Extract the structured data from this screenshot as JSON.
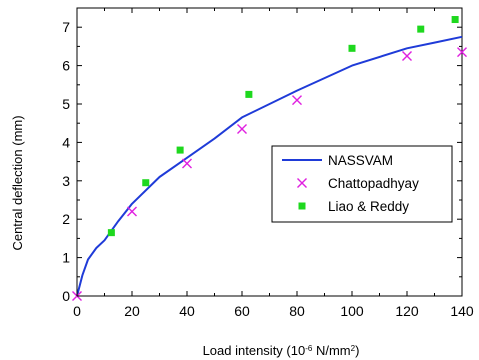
{
  "chart_data": {
    "type": "line",
    "title": "",
    "xlabel": "Load intensity (10",
    "xlabel_sup": "-6",
    "xlabel_mid": " N/mm",
    "xlabel_sup2": "2",
    "xlabel_end": ")",
    "ylabel": "Central deflection (mm)",
    "xlim": [
      0,
      140
    ],
    "ylim": [
      0,
      7.5
    ],
    "xticks": [
      0,
      20,
      40,
      60,
      80,
      100,
      120,
      140
    ],
    "yticks": [
      0,
      1,
      2,
      3,
      4,
      5,
      6,
      7
    ],
    "grid": false,
    "legend_position": "center-right",
    "series": [
      {
        "name": "NASSVAM",
        "kind": "line",
        "color": "#1f3bd8",
        "x": [
          0,
          2,
          4,
          7,
          10,
          15,
          20,
          30,
          40,
          50,
          60,
          80,
          100,
          120,
          130,
          140
        ],
        "y": [
          0,
          0.55,
          0.95,
          1.25,
          1.45,
          1.95,
          2.4,
          3.1,
          3.6,
          4.1,
          4.65,
          5.35,
          6.0,
          6.45,
          6.6,
          6.75
        ]
      },
      {
        "name": "Chattopadhyay",
        "kind": "scatter",
        "marker": "x",
        "color": "#e020e0",
        "x": [
          0,
          20,
          40,
          60,
          80,
          120,
          140
        ],
        "y": [
          0,
          2.2,
          3.45,
          4.35,
          5.1,
          6.25,
          6.35
        ]
      },
      {
        "name": "Liao & Reddy",
        "kind": "scatter",
        "marker": "square",
        "color": "#1ed81e",
        "x": [
          12.5,
          25,
          37.5,
          62.5,
          100,
          125,
          137.5
        ],
        "y": [
          1.65,
          2.95,
          3.8,
          5.25,
          6.45,
          6.95,
          7.2
        ]
      }
    ]
  }
}
